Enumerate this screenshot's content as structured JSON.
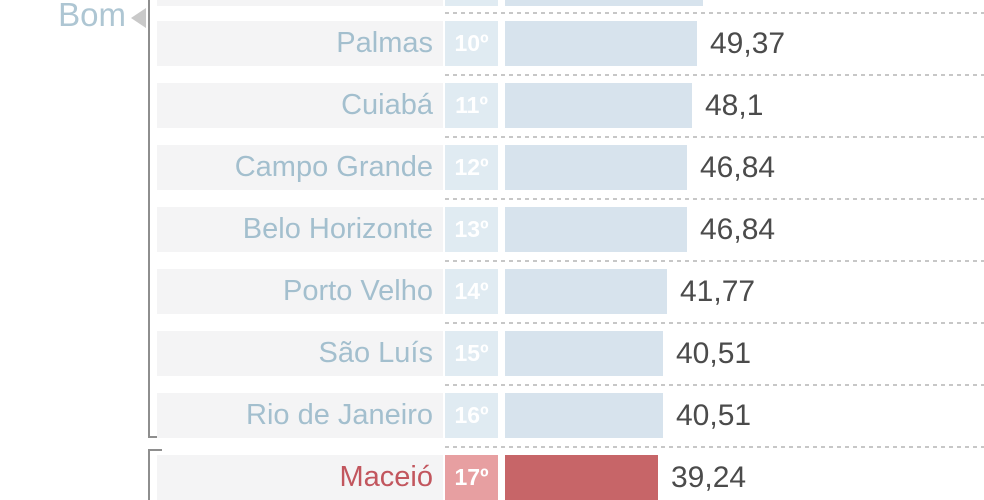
{
  "chart_data": {
    "type": "bar",
    "orientation": "horizontal",
    "title": "",
    "axis_annotation": "Bom",
    "categories": [
      "Palmas",
      "Cuiabá",
      "Campo Grande",
      "Belo Horizonte",
      "Porto Velho",
      "São Luís",
      "Rio de Janeiro",
      "Maceió"
    ],
    "ranks": [
      "10º",
      "11º",
      "12º",
      "13º",
      "14º",
      "15º",
      "16º",
      "17º"
    ],
    "values": [
      49.37,
      48.1,
      46.84,
      46.84,
      41.77,
      40.51,
      40.51,
      39.24
    ],
    "value_labels": [
      "49,37",
      "48,1",
      "46,84",
      "46,84",
      "41,77",
      "40,51",
      "40,51",
      "39,24"
    ],
    "highlight_index": 7,
    "grid": "dashed horizontal separators between rows",
    "legend": null,
    "truncated_row_above": true
  },
  "colors": {
    "row_bg": "#f4f4f5",
    "bar_blue": "#d7e3ed",
    "badge_blue": "#e0ebf2",
    "name_blue": "#a3bfce",
    "bar_red": "#c76568",
    "badge_red": "#e79fa1",
    "name_red": "#c2565e",
    "value_text": "#4b4b4b",
    "bom_label": "#aec6d3",
    "bracket": "#8e8e8e",
    "triangle": "#c9c9c9",
    "dash": "#c7c7c7",
    "badge_text": "#ffffff"
  }
}
